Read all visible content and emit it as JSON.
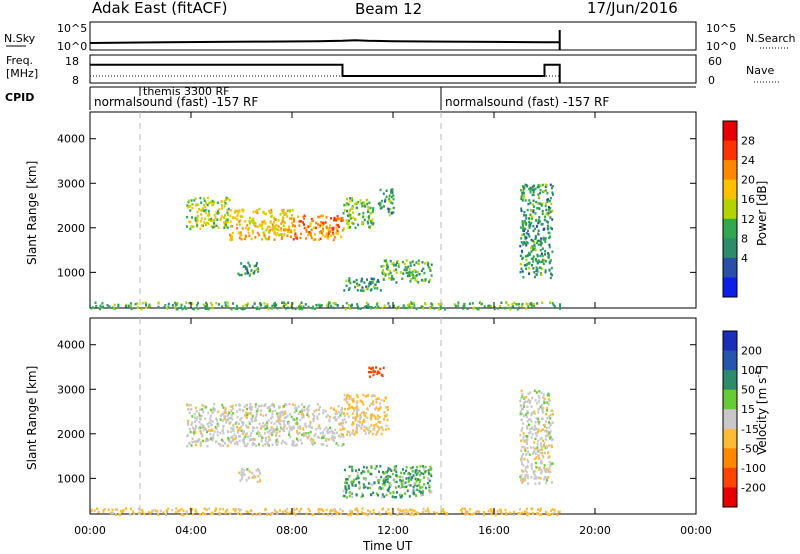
{
  "header": {
    "site": "Adak East (fitACF)",
    "beam": "Beam 12",
    "date": "17/Jun/2016"
  },
  "panels": {
    "nsky": {
      "label": "N.Sky",
      "left_ticks": [
        "10^5",
        "10^0"
      ],
      "right_ticks": [
        "10^5",
        "10^0"
      ],
      "right_label": "N.Search"
    },
    "freq": {
      "label_line1": "Freq.",
      "label_line2": "[MHz]",
      "left_ticks": [
        "18",
        "8"
      ],
      "right_ticks": [
        "60",
        "0"
      ],
      "right_label": "Nave"
    },
    "cpid": {
      "label": "CPID",
      "programs": [
        {
          "name": "normalsound (fast) -157 RF",
          "start": 0.0,
          "end": 14.0
        },
        {
          "name": "themis 3300 RF",
          "start": 2.0,
          "end": 14.0
        },
        {
          "name": "normalsound (fast) -157 RF",
          "start": 14.0,
          "end": 18.6
        }
      ]
    }
  },
  "colorbars": {
    "power": {
      "label": "Power [dB]",
      "ticks": [
        "28",
        "24",
        "20",
        "16",
        "12",
        "8",
        "4"
      ],
      "colors": [
        "#e60000",
        "#ff3300",
        "#ff8800",
        "#ffc000",
        "#b4d400",
        "#2fa84f",
        "#2d8a6a",
        "#2a4fa8",
        "#0b1fe6"
      ]
    },
    "velocity": {
      "label": "Velocity [m s",
      "label_sup": "-1",
      "label_end": "]",
      "ticks": [
        "200",
        "100",
        "50",
        "15",
        "-15",
        "-50",
        "-100",
        "-200"
      ],
      "colors": [
        "#1a2fb8",
        "#2456b0",
        "#2d8a6a",
        "#66cc33",
        "#c8c8c8",
        "#ffbb33",
        "#ff8800",
        "#ff4400",
        "#e60000"
      ]
    }
  },
  "axes": {
    "ylabel": "Slant Range [km]",
    "yticks": [
      "4000",
      "3000",
      "2000",
      "1000"
    ],
    "xticks": [
      "00:00",
      "04:00",
      "08:00",
      "12:00",
      "16:00",
      "20:00",
      "00:00"
    ],
    "xlabel": "Time UT"
  },
  "chart_data": {
    "type": "heatmap",
    "x_unit": "hours UT",
    "x_range": [
      0,
      24
    ],
    "y_range": [
      200,
      4600
    ],
    "data_end_hour": 18.6,
    "cpid_changes_hours": [
      2.0,
      14.0
    ],
    "nsky_trace": [
      [
        0.0,
        0.5
      ],
      [
        1.0,
        0.52
      ],
      [
        3.0,
        0.55
      ],
      [
        5.0,
        0.58
      ],
      [
        7.0,
        0.6
      ],
      [
        9.0,
        0.62
      ],
      [
        10.0,
        0.66
      ],
      [
        10.5,
        0.7
      ],
      [
        11.0,
        0.66
      ],
      [
        12.0,
        0.63
      ],
      [
        14.0,
        0.6
      ],
      [
        16.0,
        0.58
      ],
      [
        18.0,
        0.56
      ],
      [
        18.6,
        0.55
      ]
    ],
    "freq_trace_mhz": [
      [
        0.0,
        14.5
      ],
      [
        10.0,
        14.5
      ],
      [
        10.0,
        10.5
      ],
      [
        18.0,
        10.5
      ],
      [
        18.0,
        14.5
      ],
      [
        18.6,
        14.5
      ]
    ],
    "nave_trace": [
      [
        0.0,
        0.25
      ],
      [
        18.6,
        0.25
      ]
    ],
    "power_regions": [
      {
        "t0": 3.8,
        "t1": 5.5,
        "r0": 2000,
        "r1": 2700,
        "db": 12
      },
      {
        "t0": 5.5,
        "t1": 8.0,
        "r0": 1750,
        "r1": 2450,
        "db": 16
      },
      {
        "t0": 8.0,
        "t1": 10.0,
        "r0": 1750,
        "r1": 2300,
        "db": 20
      },
      {
        "t0": 10.0,
        "t1": 11.2,
        "r0": 2000,
        "r1": 2700,
        "db": 10
      },
      {
        "t0": 11.4,
        "t1": 12.0,
        "r0": 2300,
        "r1": 2900,
        "db": 6
      },
      {
        "t0": 5.8,
        "t1": 6.7,
        "r0": 950,
        "r1": 1250,
        "db": 6
      },
      {
        "t0": 10.0,
        "t1": 11.5,
        "r0": 600,
        "r1": 900,
        "db": 6
      },
      {
        "t0": 11.5,
        "t1": 13.5,
        "r0": 800,
        "r1": 1300,
        "db": 8
      },
      {
        "t0": 17.0,
        "t1": 18.3,
        "r0": 900,
        "r1": 3000,
        "db": 6
      },
      {
        "t0": 0.0,
        "t1": 18.6,
        "r0": 200,
        "r1": 350,
        "db": 8
      }
    ],
    "velocity_regions": [
      {
        "t0": 3.8,
        "t1": 10.0,
        "r0": 1750,
        "r1": 2700,
        "v": 0
      },
      {
        "t0": 10.0,
        "t1": 11.8,
        "r0": 2000,
        "r1": 2900,
        "v": -20
      },
      {
        "t0": 5.8,
        "t1": 6.7,
        "r0": 950,
        "r1": 1250,
        "v": 0
      },
      {
        "t0": 10.0,
        "t1": 13.5,
        "r0": 600,
        "r1": 1300,
        "v": 30
      },
      {
        "t0": 11.0,
        "t1": 11.6,
        "r0": 3300,
        "r1": 3550,
        "v": -150
      },
      {
        "t0": 17.0,
        "t1": 18.3,
        "r0": 900,
        "r1": 3000,
        "v": 0
      },
      {
        "t0": 0.0,
        "t1": 18.6,
        "r0": 200,
        "r1": 350,
        "v": -30
      }
    ]
  }
}
